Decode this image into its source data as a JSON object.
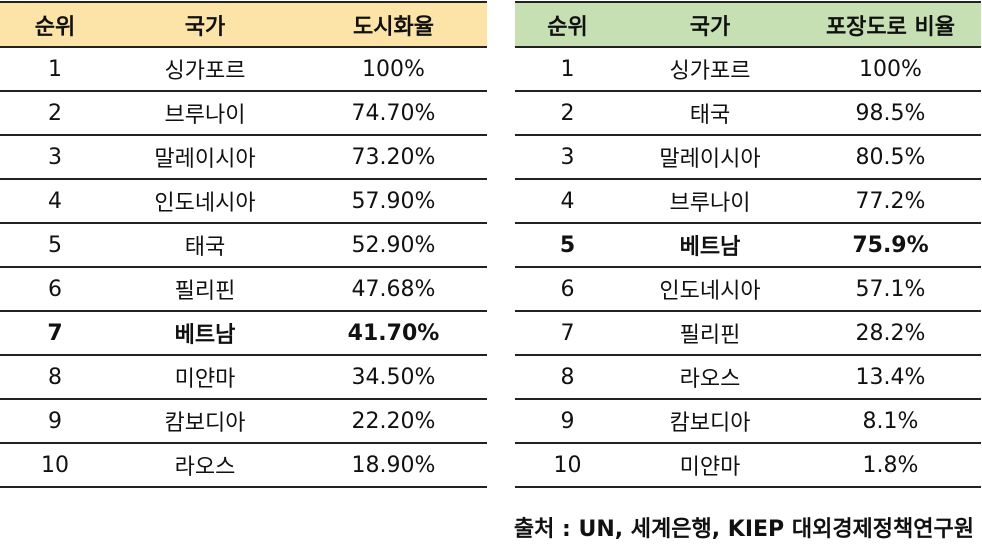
{
  "urbanization": {
    "headers": [
      "순위",
      "국가",
      "도시화율"
    ],
    "rows": [
      [
        "1",
        "싱가포르",
        "100%"
      ],
      [
        "2",
        "브루나이",
        "74.70%"
      ],
      [
        "3",
        "말레이시아",
        "73.20%"
      ],
      [
        "4",
        "인도네시아",
        "57.90%"
      ],
      [
        "5",
        "태국",
        "52.90%"
      ],
      [
        "6",
        "필리핀",
        "47.68%"
      ],
      [
        "7",
        "베트남",
        "41.70%"
      ],
      [
        "8",
        "미얀마",
        "34.50%"
      ],
      [
        "9",
        "캄보디아",
        "22.20%"
      ],
      [
        "10",
        "라오스",
        "18.90%"
      ]
    ],
    "highlight": 6
  },
  "paved_roads": {
    "headers": [
      "순위",
      "국가",
      "포장도로 비율"
    ],
    "rows": [
      [
        "1",
        "싱가포르",
        "100%"
      ],
      [
        "2",
        "태국",
        "98.5%"
      ],
      [
        "3",
        "말레이시아",
        "80.5%"
      ],
      [
        "4",
        "브루나이",
        "77.2%"
      ],
      [
        "5",
        "베트남",
        "75.9%"
      ],
      [
        "6",
        "인도네시아",
        "57.1%"
      ],
      [
        "7",
        "필리핀",
        "28.2%"
      ],
      [
        "8",
        "라오스",
        "13.4%"
      ],
      [
        "9",
        "캄보디아",
        "8.1%"
      ],
      [
        "10",
        "미얀마",
        "1.8%"
      ]
    ],
    "highlight": 4
  },
  "source": "출처 : UN, 세계은행, KIEP 대외경제정책연구원"
}
